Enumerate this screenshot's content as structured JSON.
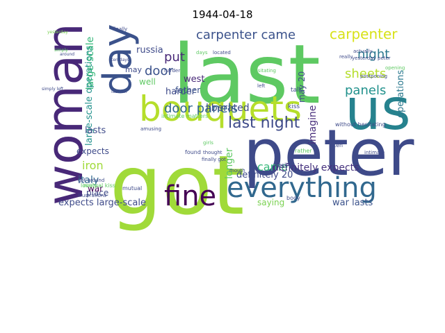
{
  "chart_data": {
    "type": "wordcloud",
    "title": "1944-04-18",
    "words": [
      {
        "text": "last",
        "color": "#5ec962"
      },
      {
        "text": "got",
        "color": "#a0da39"
      },
      {
        "text": "peter",
        "color": "#3e4a89"
      },
      {
        "text": "woman",
        "color": "#482878"
      },
      {
        "text": "us",
        "color": "#26828e"
      },
      {
        "text": "day",
        "color": "#3b528b"
      },
      {
        "text": "bouquets",
        "color": "#b5de2b"
      },
      {
        "text": "everything",
        "color": "#31688e"
      },
      {
        "text": "fine",
        "color": "#440154"
      },
      {
        "text": "last night",
        "color": "#3e4a89"
      },
      {
        "text": "carpenter came",
        "color": "#3b528b"
      },
      {
        "text": "carpenter",
        "color": "#d8e219"
      },
      {
        "text": "night",
        "color": "#2a788e"
      },
      {
        "text": "sheets",
        "color": "#b5de2b"
      },
      {
        "text": "panels",
        "color": "#21918c"
      },
      {
        "text": "door panels",
        "color": "#31688e"
      },
      {
        "text": "door",
        "color": "#3b528b"
      },
      {
        "text": "put",
        "color": "#482878"
      },
      {
        "text": "liberated",
        "color": "#3e4a89"
      },
      {
        "text": "came",
        "color": "#35b779"
      },
      {
        "text": "definitely expects",
        "color": "#46327e"
      },
      {
        "text": "definitely 20",
        "color": "#3e4a89"
      },
      {
        "text": "iron",
        "color": "#a0da39"
      },
      {
        "text": "italy",
        "color": "#31688e"
      },
      {
        "text": "war lasts",
        "color": "#3b528b"
      },
      {
        "text": "expects large-scale",
        "color": "#3e4a89"
      },
      {
        "text": "large-scale operations",
        "color": "#21918c"
      },
      {
        "text": "large-scale",
        "color": "#35b779"
      },
      {
        "text": "operations",
        "color": "#2a788e"
      },
      {
        "text": "russia",
        "color": "#3e4a89"
      },
      {
        "text": "harder",
        "color": "#3e4a89"
      },
      {
        "text": "west",
        "color": "#482878"
      },
      {
        "text": "father",
        "color": "#3b528b"
      },
      {
        "text": "imagine",
        "color": "#472d7b"
      },
      {
        "text": "longer",
        "color": "#5ec962"
      },
      {
        "text": "may 20",
        "color": "#3e4a89"
      },
      {
        "text": "lasts",
        "color": "#3e4a89"
      },
      {
        "text": "expects",
        "color": "#3e4a89"
      },
      {
        "text": "place",
        "color": "#3e4a89"
      },
      {
        "text": "war",
        "color": "#440154"
      },
      {
        "text": "saying",
        "color": "#7ad151"
      },
      {
        "text": "may",
        "color": "#3e4a89"
      },
      {
        "text": "well",
        "color": "#5ec962"
      },
      {
        "text": "finally",
        "color": "#3e4a89"
      },
      {
        "text": "yesterday",
        "color": "#7ad151"
      },
      {
        "text": "simply left",
        "color": "#3e4a89"
      },
      {
        "text": "last ten",
        "color": "#3e4a89"
      },
      {
        "text": "ten days",
        "color": "#3e4a89"
      },
      {
        "text": "yesterday peter",
        "color": "#3e4a89"
      },
      {
        "text": "really",
        "color": "#3e4a89"
      },
      {
        "text": "actually",
        "color": "#3e4a89"
      },
      {
        "text": "postponing",
        "color": "#3e4a89"
      },
      {
        "text": "opening",
        "color": "#5ec962"
      },
      {
        "text": "talk",
        "color": "#3e4a89"
      },
      {
        "text": "kiss",
        "color": "#3e4a89"
      },
      {
        "text": "intimate matters",
        "color": "#5ec962"
      },
      {
        "text": "without hesitating",
        "color": "#3e4a89"
      },
      {
        "text": "mutual kiss",
        "color": "#5ec962"
      },
      {
        "text": "lovely",
        "color": "#5ec962"
      },
      {
        "text": "found",
        "color": "#3e4a89"
      },
      {
        "text": "mutual",
        "color": "#3e4a89"
      },
      {
        "text": "got around",
        "color": "#3e4a89"
      },
      {
        "text": "illustrations",
        "color": "#3e4a89"
      },
      {
        "text": "finally got",
        "color": "#3e4a89"
      },
      {
        "text": "mouth",
        "color": "#3e4a89"
      },
      {
        "text": "rather",
        "color": "#5ec962"
      },
      {
        "text": "body",
        "color": "#3e4a89"
      },
      {
        "text": "intimate",
        "color": "#3e4a89"
      },
      {
        "text": "located",
        "color": "#3e4a89"
      },
      {
        "text": "days",
        "color": "#5ec962"
      },
      {
        "text": "harder",
        "color": "#3e4a89"
      },
      {
        "text": "hesitating",
        "color": "#5ec962"
      },
      {
        "text": "feeling",
        "color": "#3e4a89"
      },
      {
        "text": "amusing",
        "color": "#3e4a89"
      },
      {
        "text": "thought",
        "color": "#3e4a89"
      },
      {
        "text": "girls",
        "color": "#5ec962"
      },
      {
        "text": "left",
        "color": "#3e4a89"
      },
      {
        "text": "ten",
        "color": "#3e4a89"
      },
      {
        "text": "simply",
        "color": "#5ec962"
      },
      {
        "text": "around",
        "color": "#3e4a89"
      }
    ]
  }
}
